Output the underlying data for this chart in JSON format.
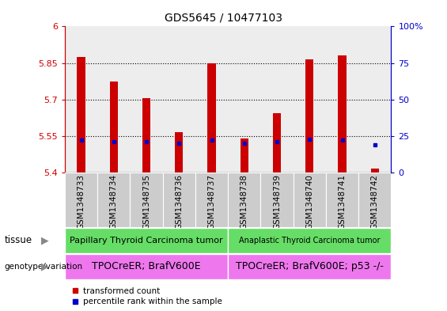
{
  "title": "GDS5645 / 10477103",
  "samples": [
    "GSM1348733",
    "GSM1348734",
    "GSM1348735",
    "GSM1348736",
    "GSM1348737",
    "GSM1348738",
    "GSM1348739",
    "GSM1348740",
    "GSM1348741",
    "GSM1348742"
  ],
  "transformed_counts": [
    5.875,
    5.775,
    5.705,
    5.565,
    5.85,
    5.54,
    5.645,
    5.865,
    5.88,
    5.415
  ],
  "percentile_ranks": [
    22,
    21,
    21,
    20,
    22,
    20,
    21,
    23,
    22,
    19
  ],
  "ylim_left": [
    5.4,
    6.0
  ],
  "ylim_right": [
    0,
    100
  ],
  "yticks_left": [
    5.4,
    5.55,
    5.7,
    5.85,
    6.0
  ],
  "ytick_labels_left": [
    "5.4",
    "5.55",
    "5.7",
    "5.85",
    "6"
  ],
  "yticks_right": [
    0,
    25,
    50,
    75,
    100
  ],
  "ytick_labels_right": [
    "0",
    "25",
    "50",
    "75",
    "100%"
  ],
  "bar_color": "#cc0000",
  "dot_color": "#0000cc",
  "bar_bottom": 5.4,
  "bar_width": 0.25,
  "tissue_labels": [
    "Papillary Thyroid Carcinoma tumor",
    "Anaplastic Thyroid Carcinoma tumor"
  ],
  "tissue_colors": [
    "#66dd66",
    "#66dd66"
  ],
  "genotype_labels": [
    "TPOCreER; BrafV600E",
    "TPOCreER; BrafV600E; p53 -/-"
  ],
  "genotype_color": "#ee77ee",
  "tick_bg_color": "#cccccc",
  "left_axis_color": "#cc0000",
  "right_axis_color": "#0000cc",
  "dotted_lines": [
    5.55,
    5.7,
    5.85
  ],
  "tissue_fontsize": 8,
  "genotype_fontsize": 9,
  "sample_fontsize": 7.5,
  "legend_marker_red": "s",
  "legend_marker_blue": "s"
}
